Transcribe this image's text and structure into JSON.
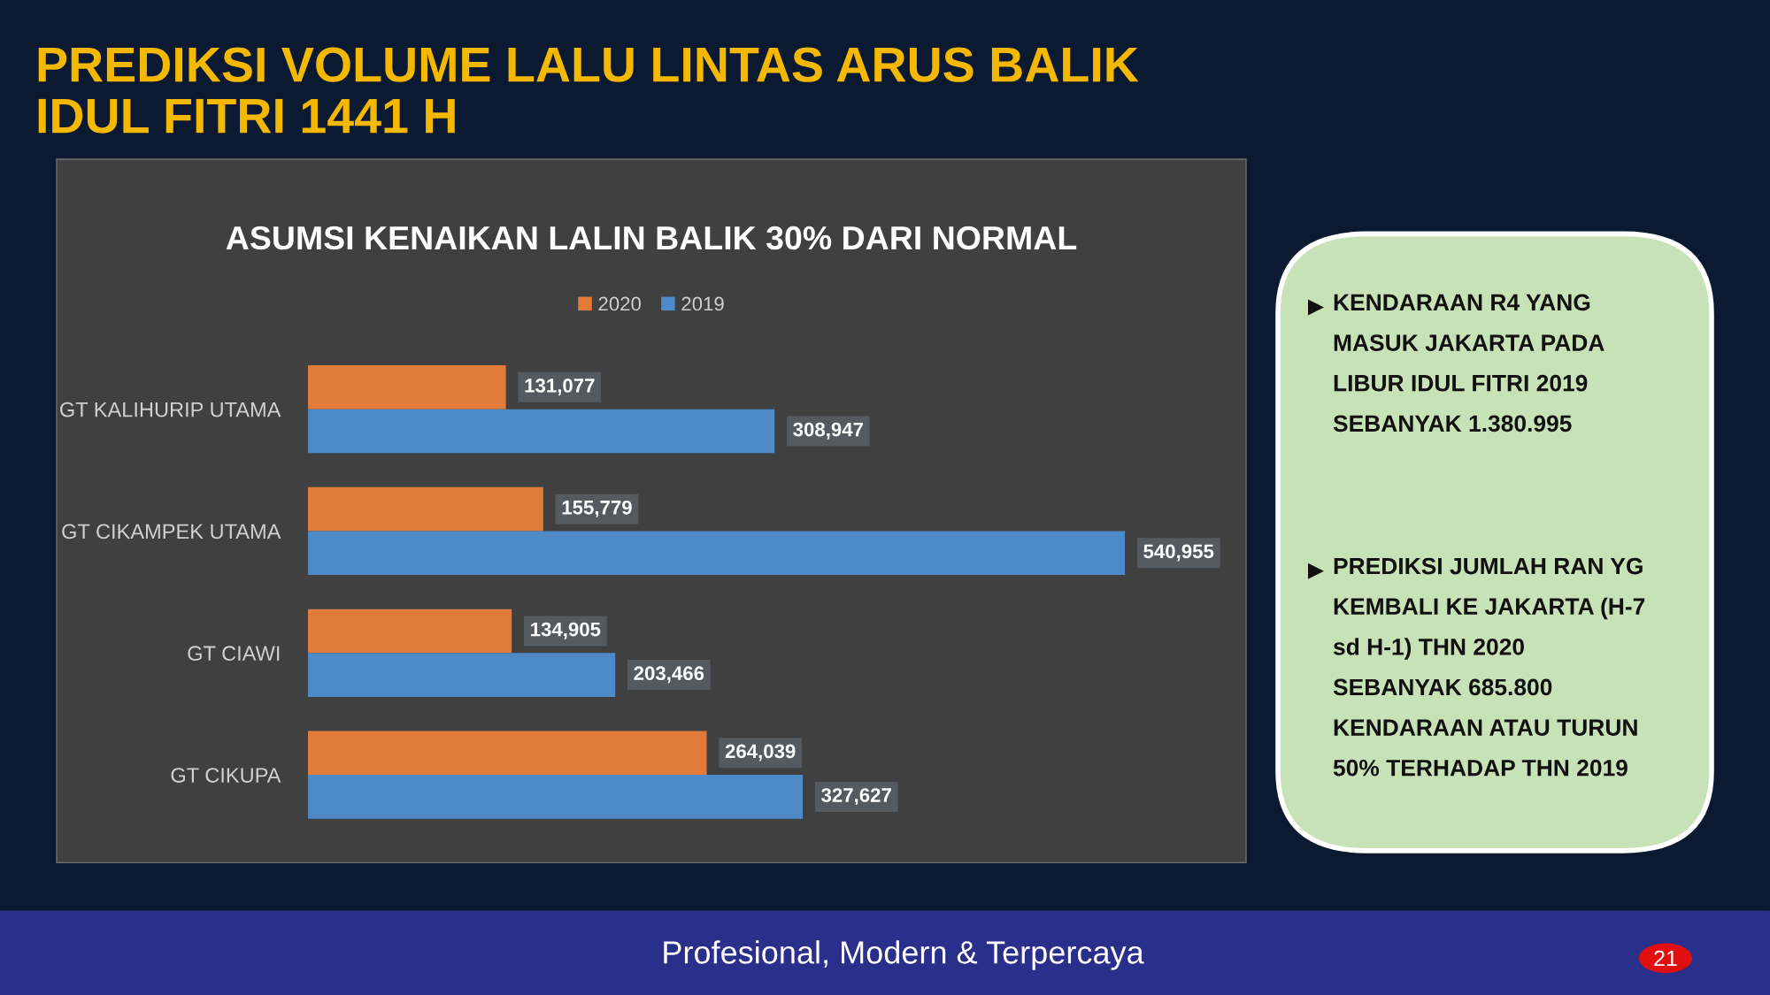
{
  "chart_data": [
    {
      "type": "bar",
      "orientation": "horizontal",
      "title": "PREDIKSI VOLUME LALU LINTAS ARUS BALIK\nIDUL FITRI 1441 H",
      "subtitle": "ASUMSI KENAIKAN LALIN BALIK 30% DARI NORMAL",
      "categories": [
        "GT KALIHURIP UTAMA",
        "GT CIKAMPEK UTAMA",
        "GT CIAWI",
        "GT CIKUPA"
      ],
      "series": [
        {
          "name": "2020",
          "color": "#e07b39",
          "values": [
            131077,
            155779,
            134905,
            264039
          ],
          "value_labels": [
            "131,077",
            "155,779",
            "134,905",
            "264,039"
          ]
        },
        {
          "name": "2019",
          "color": "#4e8ac8",
          "values": [
            308947,
            540955,
            203466,
            327627
          ],
          "value_labels": [
            "308,947",
            "540,955",
            "203,466",
            "327,627"
          ]
        }
      ],
      "legend": "top",
      "grid": false,
      "annotations": [
        "Profesional, Modern & Terpercaya",
        "21"
      ]
    },
    {
      "type": "other",
      "annotations": [
        "KENDARAAN R4 YANG\nMASUK JAKARTA PADA\nLIBUR IDUL FITRI 2019\nSEBANYAK 1.380.995",
        "PREDIKSI JUMLAH RAN YG\nKEMBALI KE JAKARTA (H-7\nsd H-1) THN 2020\nSEBANYAK 685.800\nKENDARAAN ATAU TURUN\n50% TERHADAP THN 2019"
      ]
    }
  ]
}
